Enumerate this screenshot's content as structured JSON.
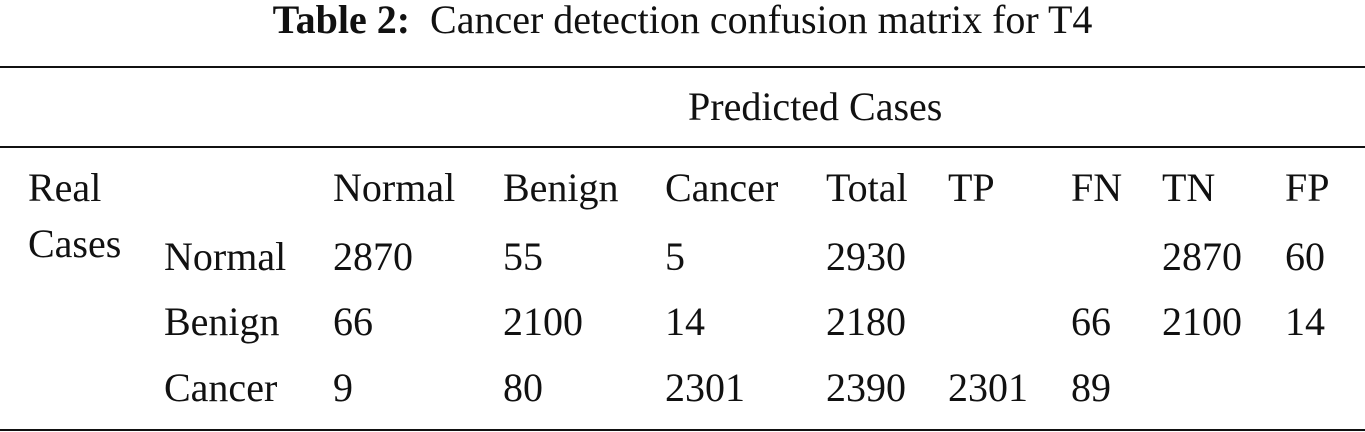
{
  "caption": {
    "label": "Table 2:",
    "text": "Cancer detection confusion matrix for T4"
  },
  "table": {
    "group_header": "Predicted Cases",
    "row_group": [
      "Real",
      "Cases"
    ],
    "columns": [
      "Normal",
      "Benign",
      "Cancer",
      "Total",
      "TP",
      "FN",
      "TN",
      "FP"
    ],
    "rows": [
      {
        "label": "Normal",
        "cells": [
          2870,
          55,
          5,
          2930,
          null,
          null,
          2870,
          60
        ]
      },
      {
        "label": "Benign",
        "cells": [
          66,
          2100,
          14,
          2180,
          null,
          66,
          2100,
          14
        ]
      },
      {
        "label": "Cancer",
        "cells": [
          9,
          80,
          2301,
          2390,
          2301,
          89,
          null,
          null
        ]
      }
    ]
  }
}
